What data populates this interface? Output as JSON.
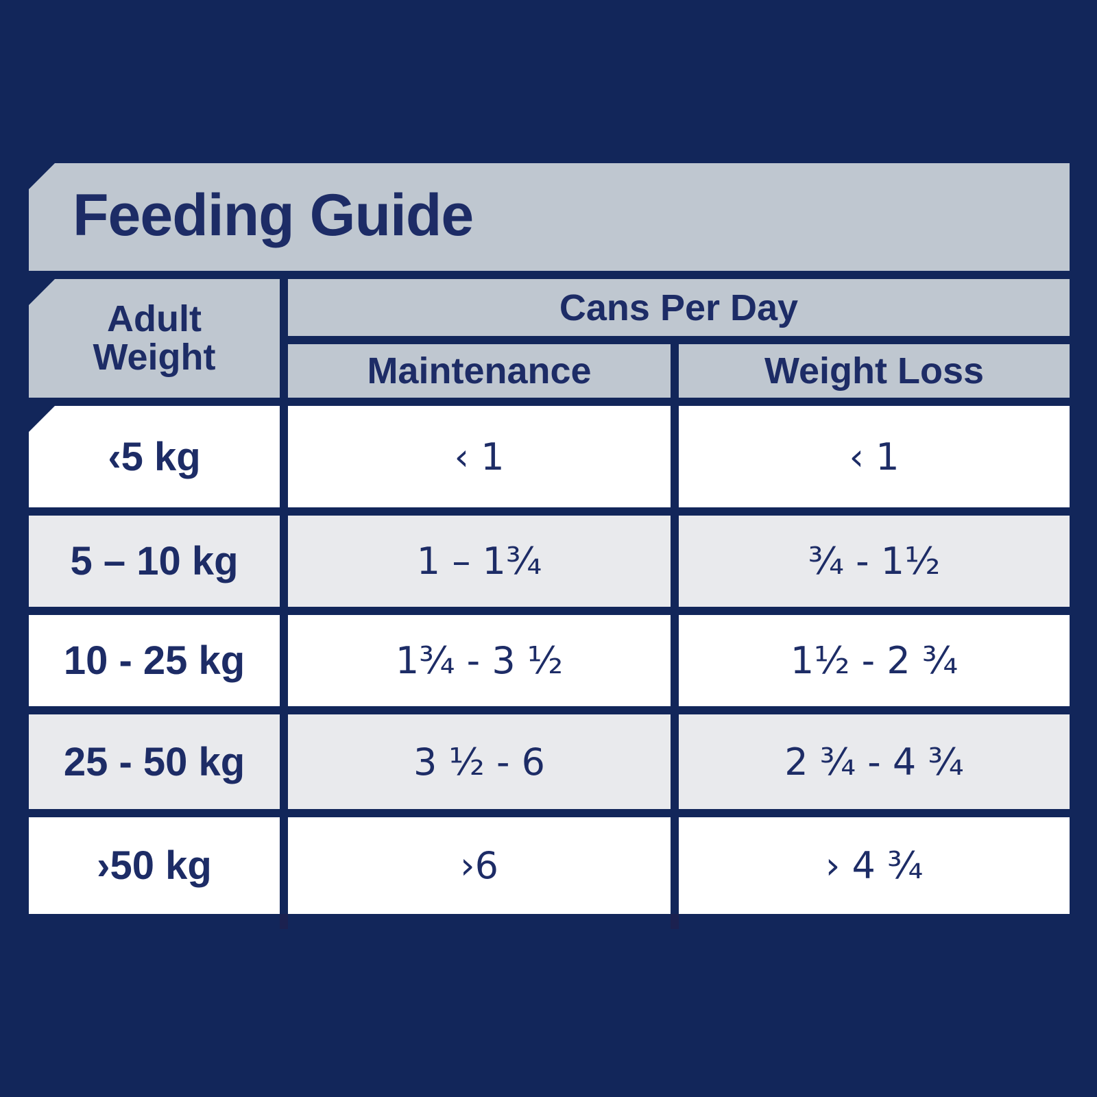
{
  "title": "Feeding Guide",
  "table": {
    "headers": {
      "weight_line1": "Adult",
      "weight_line2": "Weight",
      "cans_per_day": "Cans Per Day",
      "maintenance": "Maintenance",
      "weight_loss": "Weight Loss"
    },
    "rows": [
      {
        "weight": "‹5 kg",
        "maintenance": "‹ 1",
        "weight_loss": "‹ 1"
      },
      {
        "weight": "5 – 10 kg",
        "maintenance": "1 – 1¾",
        "weight_loss": "¾ - 1½"
      },
      {
        "weight": "10 - 25 kg",
        "maintenance": "1¾ - 3 ½",
        "weight_loss": "1½ - 2 ¾"
      },
      {
        "weight": "25 - 50 kg",
        "maintenance": "3 ½ - 6",
        "weight_loss": "2 ¾ - 4 ¾"
      },
      {
        "weight": "›50 kg",
        "maintenance": "›6",
        "weight_loss": "› 4 ¾"
      }
    ]
  },
  "colors": {
    "background_navy": "#12265A",
    "band_gray": "#BFC7D0",
    "row_light_gray": "#E9EAED",
    "row_white": "#FFFFFF",
    "text_navy": "#1D2C66"
  }
}
